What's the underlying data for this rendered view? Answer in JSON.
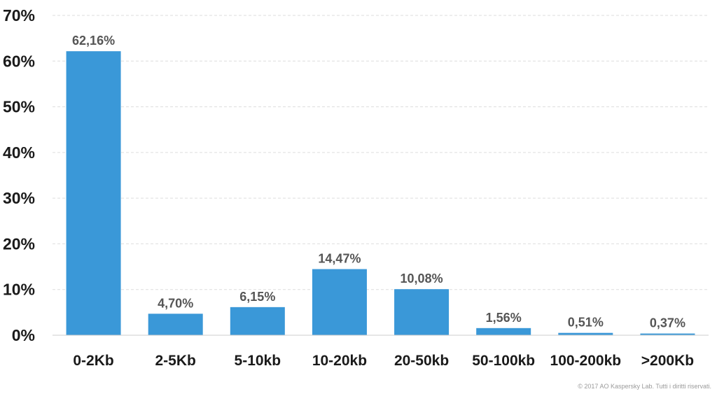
{
  "chart_data": {
    "type": "bar",
    "categories": [
      "0-2Kb",
      "2-5Kb",
      "5-10kb",
      "10-20kb",
      "20-50kb",
      "50-100kb",
      "100-200kb",
      ">200Kb"
    ],
    "values": [
      62.16,
      4.7,
      6.15,
      14.47,
      10.08,
      1.56,
      0.51,
      0.37
    ],
    "data_labels": [
      "62,16%",
      "4,70%",
      "6,15%",
      "14,47%",
      "10,08%",
      "1,56%",
      "0,51%",
      "0,37%"
    ],
    "ylim": [
      0,
      70
    ],
    "yticks": [
      0,
      10,
      20,
      30,
      40,
      50,
      60,
      70
    ],
    "ytick_labels": [
      "0%",
      "10%",
      "20%",
      "30%",
      "40%",
      "50%",
      "60%",
      "70%"
    ],
    "grid": true,
    "bar_color": "#3a98d8"
  },
  "footer": {
    "copyright": "© 2017 AO Kaspersky Lab. Tutti i diritti riservati."
  }
}
